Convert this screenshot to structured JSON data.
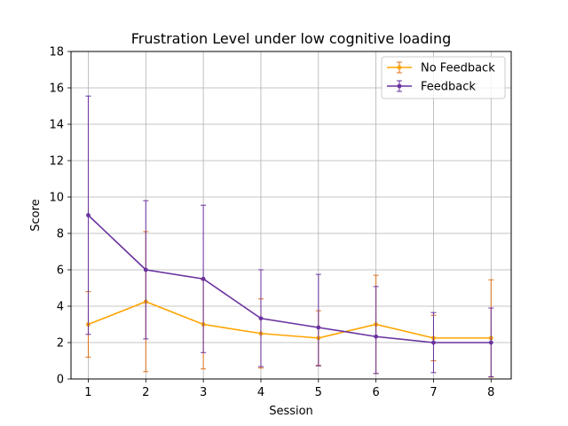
{
  "chart_data": {
    "type": "line",
    "title": "Frustration Level under low cognitive loading",
    "xlabel": "Session",
    "ylabel": "Score",
    "x": [
      1,
      2,
      3,
      4,
      5,
      6,
      7,
      8
    ],
    "xlim": [
      0.7,
      8.35
    ],
    "ylim": [
      0,
      18
    ],
    "xticks": [
      1,
      2,
      3,
      4,
      5,
      6,
      7,
      8
    ],
    "yticks": [
      0,
      2,
      4,
      6,
      8,
      10,
      12,
      14,
      16,
      18
    ],
    "grid": true,
    "legend_position": "top-right",
    "series": [
      {
        "name": "No Feedback",
        "color": "#ffa500",
        "errcolor": "#e0731a",
        "values": [
          3.0,
          4.25,
          3.0,
          2.5,
          2.25,
          3.0,
          2.25,
          2.25
        ],
        "err_low": [
          1.2,
          0.4,
          0.55,
          0.6,
          0.75,
          0.3,
          1.0,
          0.1
        ],
        "err_high": [
          4.8,
          8.1,
          5.45,
          4.4,
          3.75,
          5.7,
          3.5,
          5.45
        ]
      },
      {
        "name": "Feedback",
        "color": "#6a329f",
        "errcolor": "#6a329f",
        "values": [
          9.0,
          6.0,
          5.5,
          3.33,
          2.83,
          2.33,
          2.0,
          2.0
        ],
        "err_low": [
          2.45,
          2.2,
          1.45,
          0.68,
          0.72,
          0.3,
          0.35,
          0.12
        ],
        "err_high": [
          15.55,
          9.8,
          9.55,
          6.0,
          5.75,
          5.08,
          3.65,
          3.9
        ]
      }
    ]
  }
}
